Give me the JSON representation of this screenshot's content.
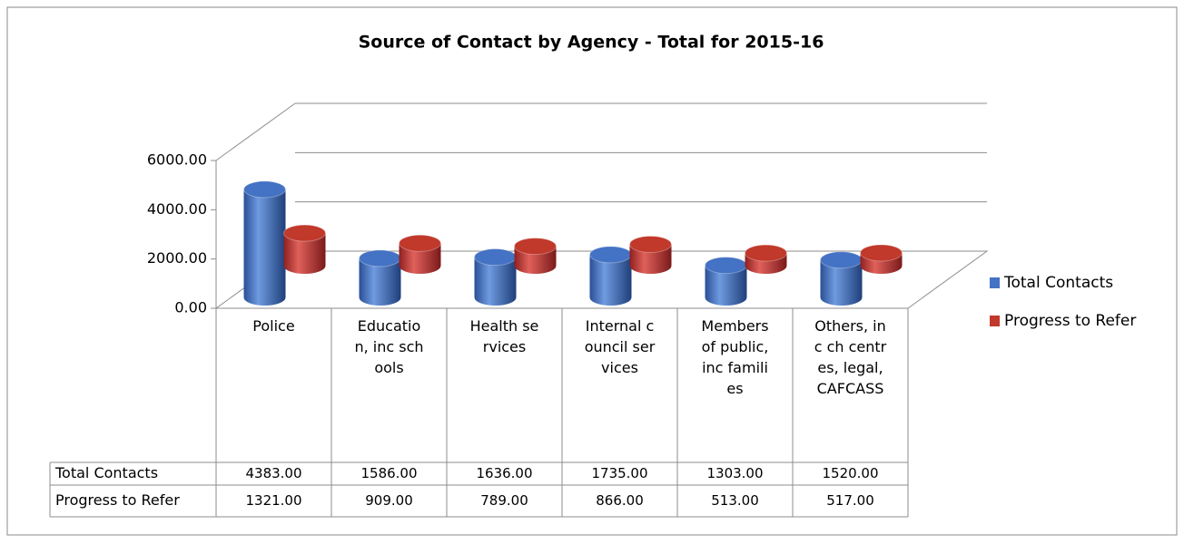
{
  "chart_data": {
    "type": "bar3d",
    "title": "Source of Contact by Agency - Total for 2015-16",
    "categories": [
      "Police",
      "Education, inc schools",
      "Health services",
      "Internal council services",
      "Members of public, inc families",
      "Others, inc ch centres, legal, CAFCASS"
    ],
    "series": [
      {
        "name": "Total Contacts",
        "color": "#4472c4",
        "values": [
          4383,
          1586,
          1636,
          1735,
          1303,
          1520
        ],
        "value_labels": [
          "4383.00",
          "1586.00",
          "1636.00",
          "1735.00",
          "1303.00",
          "1520.00"
        ]
      },
      {
        "name": "Progress to Refer",
        "color": "#c0392b",
        "values": [
          1321,
          909,
          789,
          866,
          513,
          517
        ],
        "value_labels": [
          "1321.00",
          "909.00",
          "789.00",
          "866.00",
          "513.00",
          "517.00"
        ]
      }
    ],
    "ylim": [
      0,
      6000
    ],
    "yticks": [
      {
        "value": 0,
        "label": "0.00"
      },
      {
        "value": 2000,
        "label": "2000.00"
      },
      {
        "value": 4000,
        "label": "4000.00"
      },
      {
        "value": 6000,
        "label": "6000.00"
      }
    ],
    "grid": true,
    "legend": "right"
  }
}
